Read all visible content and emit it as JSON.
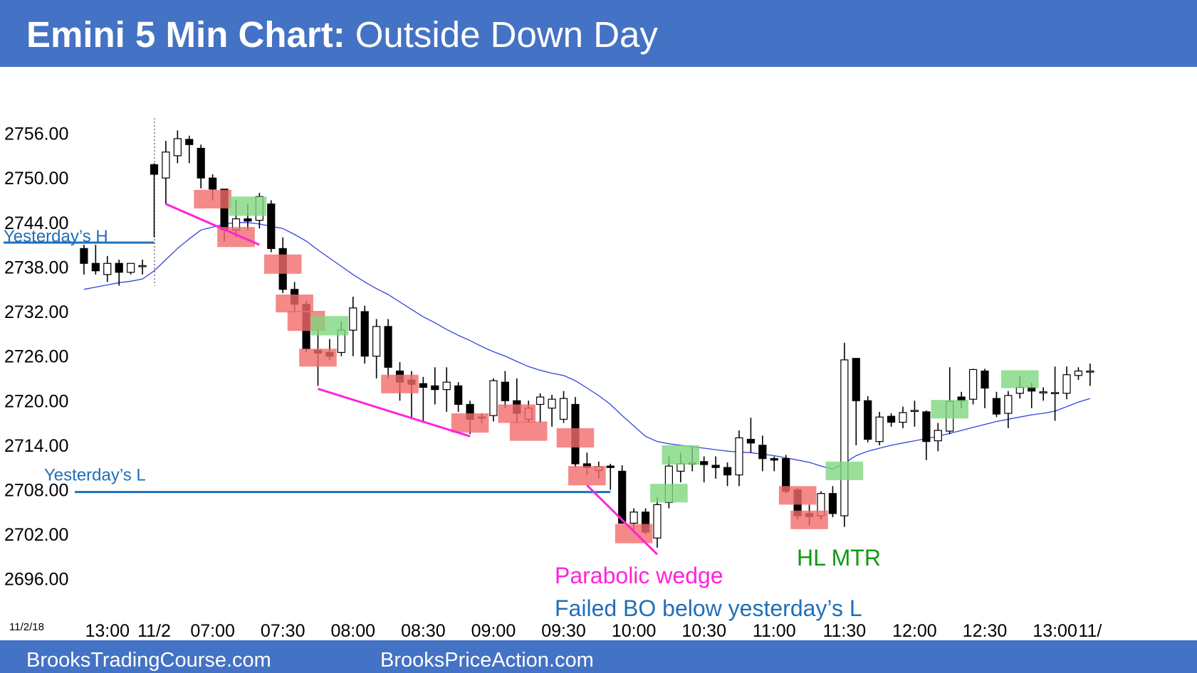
{
  "chart_data": {
    "type": "candlestick",
    "title": "Emini 5 Min Chart:",
    "subtitle": "Outside Down Day",
    "date_label": "11/2/18",
    "footer_left": "BrooksTradingCourse.com",
    "footer_right": "BrooksPriceAction.com",
    "categories": [
      null,
      null,
      "13:00",
      null,
      null,
      null,
      "11/2",
      null,
      null,
      null,
      null,
      "07:00",
      null,
      null,
      null,
      null,
      null,
      "07:30",
      null,
      null,
      null,
      null,
      null,
      "08:00",
      null,
      null,
      null,
      null,
      null,
      "08:30",
      null,
      null,
      null,
      null,
      null,
      "09:00",
      null,
      null,
      null,
      null,
      null,
      "09:30",
      null,
      null,
      null,
      null,
      null,
      "10:00",
      null,
      null,
      null,
      null,
      null,
      "10:30",
      null,
      null,
      null,
      null,
      null,
      "11:00",
      null,
      null,
      null,
      null,
      null,
      "11:30",
      null,
      null,
      null,
      null,
      null,
      "12:00",
      null,
      null,
      null,
      null,
      null,
      "12:30",
      null,
      null,
      null,
      null,
      null,
      "13:00",
      null,
      null,
      "11/"
    ],
    "open": [
      2740.5,
      2738.5,
      2737,
      2738.5,
      2737.3,
      2738.2,
      2751.8,
      2750,
      2753,
      2755.2,
      2754,
      2750,
      2748.5,
      2743,
      2744.5,
      2744.3,
      2746.5,
      2740.5,
      2735,
      2733,
      2726.8,
      2726.5,
      2726.5,
      2729.5,
      2732,
      2726,
      2730,
      2724,
      2722.8,
      2722.3,
      2722,
      2721.5,
      2722,
      2719.5,
      2717.8,
      2718,
      2722.5,
      2720,
      2717.5,
      2719.5,
      2719,
      2717.5,
      2719.5,
      2711.5,
      2710.6,
      2711.2,
      2710.5,
      2703.5,
      2705,
      2701.5,
      2706.3,
      2710.5,
      2711.6,
      2711.8,
      2711.3,
      2711,
      2710,
      2714.8,
      2714,
      2712.2,
      2712.2,
      2708,
      2704.8,
      2704.5,
      2707.5,
      2704.5,
      2725.7,
      2720,
      2714.5,
      2717.9,
      2717.1,
      2718.7,
      2718.5,
      2714.6,
      2715.9,
      2720.5,
      2720.2,
      2724,
      2720.3,
      2718.3,
      2721,
      2721.8,
      2721.2,
      2721.1,
      2721,
      2723.4,
      2724
    ],
    "high": [
      2741,
      2741,
      2739.5,
      2739,
      2738.5,
      2739,
      2752,
      2755,
      2756.4,
      2755.7,
      2754.5,
      2750.5,
      2748.5,
      2747,
      2746.5,
      2748,
      2747,
      2742,
      2736,
      2733.5,
      2730,
      2728.3,
      2730.7,
      2734,
      2732.8,
      2731,
      2731,
      2725.2,
      2724,
      2723.2,
      2724.5,
      2724.5,
      2722.5,
      2720,
      2718.3,
      2723,
      2724,
      2723,
      2720,
      2721,
      2720.8,
      2721.3,
      2720.5,
      2713,
      2711.8,
      2711.5,
      2711.3,
      2705.5,
      2705.5,
      2707,
      2712.5,
      2713,
      2713.8,
      2712.5,
      2712.5,
      2711.7,
      2716,
      2717.7,
      2715.3,
      2712.5,
      2712.7,
      2708.2,
      2706,
      2707.8,
      2708.5,
      2727.8,
      2725.7,
      2720.6,
      2718.5,
      2718.3,
      2719.2,
      2720,
      2718.7,
      2717,
      2724.5,
      2721.2,
      2724.3,
      2724.3,
      2721.2,
      2721.3,
      2723.3,
      2722.4,
      2721.8,
      2724.6,
      2724.6,
      2724.5,
      2725
    ],
    "low": [
      2737,
      2737,
      2736,
      2735.5,
      2737,
      2737,
      2742,
      2746.5,
      2752,
      2752,
      2748.6,
      2747,
      2741.5,
      2742,
      2743,
      2743.2,
      2740,
      2734.5,
      2732,
      2726.5,
      2722,
      2725.5,
      2726,
      2726,
      2725,
      2723,
      2723,
      2720,
      2717.5,
      2717,
      2719.5,
      2718.5,
      2718.5,
      2715.5,
      2717,
      2717.2,
      2719,
      2717,
      2717,
      2717,
      2716.5,
      2717,
      2711,
      2710,
      2709.5,
      2708,
      2703.5,
      2702.5,
      2702,
      2700.2,
      2705.5,
      2709,
      2710.5,
      2709,
      2709.5,
      2708.5,
      2708.5,
      2713,
      2710.5,
      2710.5,
      2707.5,
      2704,
      2703.2,
      2704,
      2704.3,
      2703,
      2714,
      2714.4,
      2714,
      2716.5,
      2716.3,
      2716.5,
      2712,
      2713.2,
      2715.5,
      2719,
      2719.5,
      2719,
      2717.8,
      2716.3,
      2720.3,
      2719,
      2720,
      2717.3,
      2720.2,
      2722.8,
      2722
    ],
    "close": [
      2738.5,
      2737.5,
      2738.5,
      2737.3,
      2738.5,
      2738.2,
      2750.5,
      2753.5,
      2755.3,
      2754.5,
      2750,
      2748.5,
      2743,
      2744.5,
      2744.2,
      2747.5,
      2740.5,
      2735,
      2733,
      2727,
      2726.4,
      2726,
      2729.5,
      2732.5,
      2726,
      2730,
      2724.5,
      2722.5,
      2722.2,
      2721.8,
      2721.5,
      2722.5,
      2719.5,
      2717.5,
      2717.8,
      2722.7,
      2720,
      2718.3,
      2719,
      2720.5,
      2720.2,
      2720.3,
      2711.5,
      2711,
      2711.1,
      2711,
      2703.5,
      2705,
      2702.3,
      2706,
      2711.2,
      2711.5,
      2711.6,
      2711.4,
      2711,
      2710,
      2715,
      2714.3,
      2712.2,
      2712,
      2707.8,
      2704.5,
      2704.4,
      2707.5,
      2704.8,
      2725.5,
      2720,
      2714.8,
      2717.8,
      2717.1,
      2718.4,
      2718.7,
      2714.5,
      2716,
      2719.9,
      2720,
      2724.2,
      2721.7,
      2718.2,
      2720.7,
      2721.8,
      2721.3,
      2721.2,
      2721.1,
      2723.5,
      2724,
      2724
    ],
    "ma": {
      "color": "#3344dd",
      "values": [
        2735,
        2735.3,
        2735.6,
        2735.9,
        2736.1,
        2736.4,
        2737.5,
        2739,
        2740.5,
        2741.8,
        2743,
        2743.4,
        2743.8,
        2744,
        2744,
        2743.8,
        2743.5,
        2743.2,
        2742.4,
        2741.5,
        2740.3,
        2739.2,
        2738.1,
        2737,
        2736,
        2735.1,
        2734.3,
        2733.3,
        2732.3,
        2731.3,
        2730.5,
        2729.6,
        2728.8,
        2728.1,
        2727.3,
        2726.6,
        2726,
        2725.3,
        2724.6,
        2724.1,
        2723.7,
        2723.4,
        2722.7,
        2721.7,
        2720.7,
        2719.5,
        2718,
        2716.6,
        2715.2,
        2714.5,
        2714.2,
        2714,
        2713.8,
        2713.6,
        2713.4,
        2713.2,
        2713.1,
        2713,
        2712.8,
        2712.6,
        2712.3,
        2712,
        2711.7,
        2711.2,
        2710.8,
        2711.6,
        2712.6,
        2713.2,
        2713.6,
        2714,
        2714.3,
        2714.6,
        2714.9,
        2715.2,
        2715.6,
        2716,
        2716.4,
        2716.8,
        2717.2,
        2717.5,
        2717.8,
        2718.1,
        2718.3,
        2718.6,
        2719.2,
        2719.8,
        2720.3
      ]
    },
    "ylim": [
      2690,
      2762
    ],
    "yticks": [
      {
        "value": 2756,
        "label": "2756.00"
      },
      {
        "value": 2750,
        "label": "2750.00"
      },
      {
        "value": 2744,
        "label": "2744.00"
      },
      {
        "value": 2738,
        "label": "2738.00"
      },
      {
        "value": 2732,
        "label": "2732.00"
      },
      {
        "value": 2726,
        "label": "2726.00"
      },
      {
        "value": 2720,
        "label": "2720.00"
      },
      {
        "value": 2714,
        "label": "2714.00"
      },
      {
        "value": 2708,
        "label": "2708.00"
      },
      {
        "value": 2702,
        "label": "2702.00"
      },
      {
        "value": 2696,
        "label": "2696.00"
      }
    ],
    "hlines": [
      {
        "label": "Yesterday’s H",
        "value": 2741.3,
        "end": 6,
        "color": "#1f6fb8"
      },
      {
        "label": "Yesterday’s L",
        "value": 2707.7,
        "end": 45,
        "color": "#1f6fb8"
      }
    ],
    "wedge_lines": {
      "color": "#ff22dd",
      "lines": [
        {
          "from": 7,
          "from_value": 2746.5,
          "to": 15,
          "to_value": 2741
        },
        {
          "from": 20,
          "from_value": 2721.6,
          "to": 33,
          "to_value": 2715.2
        },
        {
          "from": 43,
          "from_value": 2708.6,
          "to": 49,
          "to_value": 2699.3
        }
      ]
    },
    "highlights": [
      {
        "index": 11,
        "high": 2748.4,
        "low": 2745.9,
        "color": "#f26b6b"
      },
      {
        "index": 13,
        "high": 2743.4,
        "low": 2740.7,
        "color": "#f26b6b"
      },
      {
        "index": 17,
        "high": 2739.7,
        "low": 2737.1,
        "color": "#f26b6b"
      },
      {
        "index": 18,
        "high": 2734.3,
        "low": 2731.9,
        "color": "#f26b6b"
      },
      {
        "index": 19,
        "high": 2732.1,
        "low": 2729.4,
        "color": "#f26b6b"
      },
      {
        "index": 20,
        "high": 2727,
        "low": 2724.6,
        "color": "#f26b6b"
      },
      {
        "index": 27,
        "high": 2723.5,
        "low": 2721,
        "color": "#f26b6b"
      },
      {
        "index": 33,
        "high": 2718.3,
        "low": 2715.7,
        "color": "#f26b6b"
      },
      {
        "index": 37,
        "high": 2719.5,
        "low": 2717,
        "color": "#f26b6b"
      },
      {
        "index": 38,
        "high": 2717.2,
        "low": 2714.6,
        "color": "#f26b6b"
      },
      {
        "index": 42,
        "high": 2716.3,
        "low": 2713.7,
        "color": "#f26b6b"
      },
      {
        "index": 43,
        "high": 2711.2,
        "low": 2708.6,
        "color": "#f26b6b"
      },
      {
        "index": 47,
        "high": 2703.4,
        "low": 2700.8,
        "color": "#f26b6b"
      },
      {
        "index": 61,
        "high": 2708.5,
        "low": 2706,
        "color": "#f26b6b"
      },
      {
        "index": 62,
        "high": 2705.2,
        "low": 2702.7,
        "color": "#f26b6b"
      },
      {
        "index": 14,
        "high": 2747.5,
        "low": 2744.9,
        "color": "#7fd67f"
      },
      {
        "index": 21,
        "high": 2731.4,
        "low": 2728.8,
        "color": "#7fd67f"
      },
      {
        "index": 50,
        "high": 2708.8,
        "low": 2706.3,
        "color": "#7fd67f"
      },
      {
        "index": 51,
        "high": 2714,
        "low": 2711.4,
        "color": "#7fd67f"
      },
      {
        "index": 65,
        "high": 2711.8,
        "low": 2709.3,
        "color": "#7fd67f"
      },
      {
        "index": 74,
        "high": 2720.1,
        "low": 2717.6,
        "color": "#7fd67f"
      },
      {
        "index": 80,
        "high": 2724.1,
        "low": 2721.7,
        "color": "#7fd67f"
      }
    ],
    "annotations": [
      {
        "text": "Parabolic wedge",
        "color": "#ff22dd"
      },
      {
        "text": "Failed BO below yesterday’s L",
        "color": "#1f6fb8"
      },
      {
        "text": "HL MTR",
        "color": "#119911"
      }
    ]
  }
}
